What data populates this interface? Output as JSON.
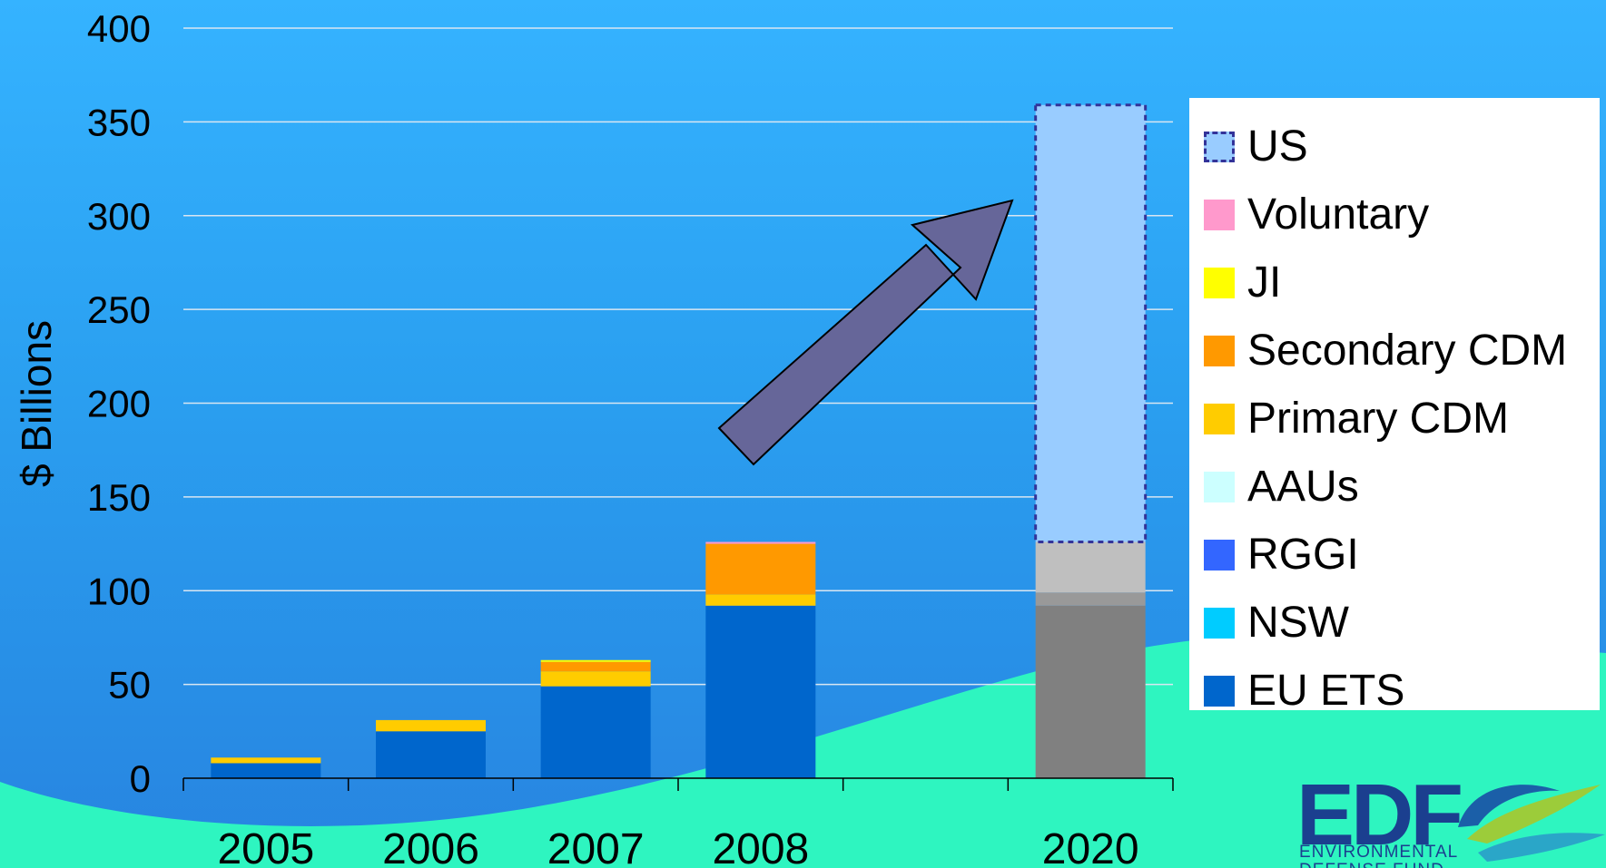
{
  "chart_data": {
    "type": "bar",
    "stacked": true,
    "categories": [
      "2005",
      "2006",
      "2007",
      "2008",
      "",
      "2020"
    ],
    "ylabel": "$ Billions",
    "xlabel": "",
    "ylim": [
      0,
      400
    ],
    "yticks": [
      0,
      50,
      100,
      150,
      200,
      250,
      300,
      350,
      400
    ],
    "grid": true,
    "legend_position": "right",
    "series": [
      {
        "name": "EU ETS",
        "color": "#0066cc",
        "values": [
          8,
          25,
          49,
          92,
          null,
          null
        ]
      },
      {
        "name": "NSW",
        "color": "#00ccff",
        "values": [
          0,
          0,
          0,
          0,
          null,
          null
        ]
      },
      {
        "name": "RGGI",
        "color": "#3366ff",
        "values": [
          0,
          0,
          0,
          0,
          null,
          null
        ]
      },
      {
        "name": "AAUs",
        "color": "#ccffff",
        "values": [
          0,
          0,
          0,
          0,
          null,
          null
        ]
      },
      {
        "name": "Primary CDM",
        "color": "#ffcc00",
        "values": [
          3,
          6,
          8,
          6,
          null,
          null
        ]
      },
      {
        "name": "Secondary CDM",
        "color": "#ff9900",
        "values": [
          0,
          0,
          5,
          27,
          null,
          null
        ]
      },
      {
        "name": "JI",
        "color": "#ffff00",
        "values": [
          0,
          0,
          1,
          0,
          null,
          null
        ]
      },
      {
        "name": "Voluntary",
        "color": "#ff99cc",
        "values": [
          0,
          0,
          0,
          1,
          null,
          null
        ]
      },
      {
        "name": "US",
        "color": "#99ccff",
        "values": [
          null,
          null,
          null,
          null,
          null,
          233
        ]
      }
    ],
    "projection_2020": {
      "gray_segments": [
        {
          "value": 92,
          "color": "#808080"
        },
        {
          "value": 7,
          "color": "#999999"
        },
        {
          "value": 27,
          "color": "#bfbfbf"
        }
      ]
    }
  },
  "legend": {
    "items": [
      {
        "label": "US",
        "color": "#99ccff",
        "dashed": true
      },
      {
        "label": "Voluntary",
        "color": "#ff99cc"
      },
      {
        "label": "JI",
        "color": "#ffff00"
      },
      {
        "label": "Secondary CDM",
        "color": "#ff9900"
      },
      {
        "label": "Primary CDM",
        "color": "#ffcc00"
      },
      {
        "label": "AAUs",
        "color": "#ccffff"
      },
      {
        "label": "RGGI",
        "color": "#3366ff"
      },
      {
        "label": "NSW",
        "color": "#00ccff"
      },
      {
        "label": "EU ETS",
        "color": "#0066cc"
      }
    ]
  },
  "logo": {
    "text": "EDF",
    "subtitle_line1": "ENVIRONMENTAL",
    "subtitle_line2": "DEFENSE FUND"
  },
  "colors": {
    "background": "#2a9ff0",
    "wave": "#2ef5c0",
    "arrow": "#666699",
    "grid": "#d9e6f2"
  }
}
